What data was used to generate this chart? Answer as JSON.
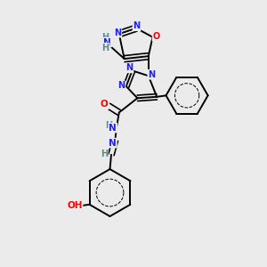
{
  "bg_color": "#ebebeb",
  "atom_colors": {
    "N": "#2020ff",
    "O": "#ff0000",
    "C": "#000000",
    "H": "#5a8a8a"
  },
  "bond_color": "#000000",
  "bond_width": 1.4,
  "figsize": [
    3.0,
    3.0
  ],
  "dpi": 100
}
